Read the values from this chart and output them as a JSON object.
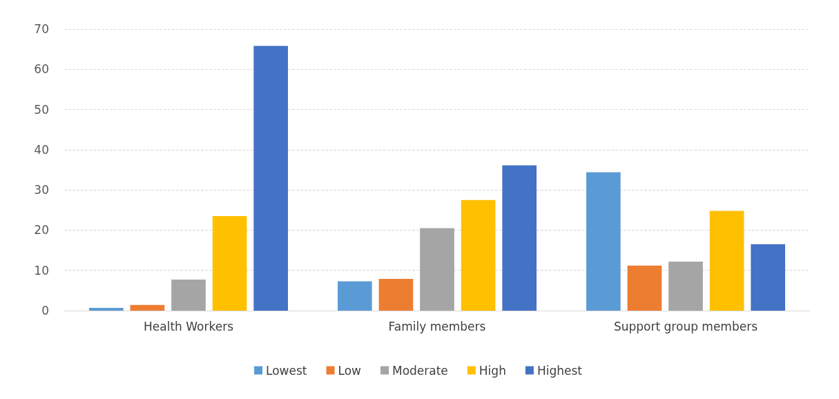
{
  "chart_data": {
    "type": "bar",
    "categories": [
      "Health Workers",
      "Family members",
      "Support group members"
    ],
    "series": [
      {
        "name": "Lowest",
        "color": "#5b9bd5",
        "values": [
          0.7,
          7.3,
          34.4
        ]
      },
      {
        "name": "Low",
        "color": "#ed7d31",
        "values": [
          1.4,
          7.9,
          11.2
        ]
      },
      {
        "name": "Moderate",
        "color": "#a5a5a5",
        "values": [
          7.7,
          20.5,
          12.2
        ]
      },
      {
        "name": "High",
        "color": "#ffc000",
        "values": [
          23.5,
          27.5,
          24.8
        ]
      },
      {
        "name": "Highest",
        "color": "#4472c4",
        "values": [
          65.8,
          36.1,
          16.5
        ]
      }
    ],
    "ylim": [
      0,
      70
    ],
    "yticks": [
      0,
      10,
      20,
      30,
      40,
      50,
      60,
      70
    ],
    "grid": "y",
    "legend": "bottom"
  }
}
